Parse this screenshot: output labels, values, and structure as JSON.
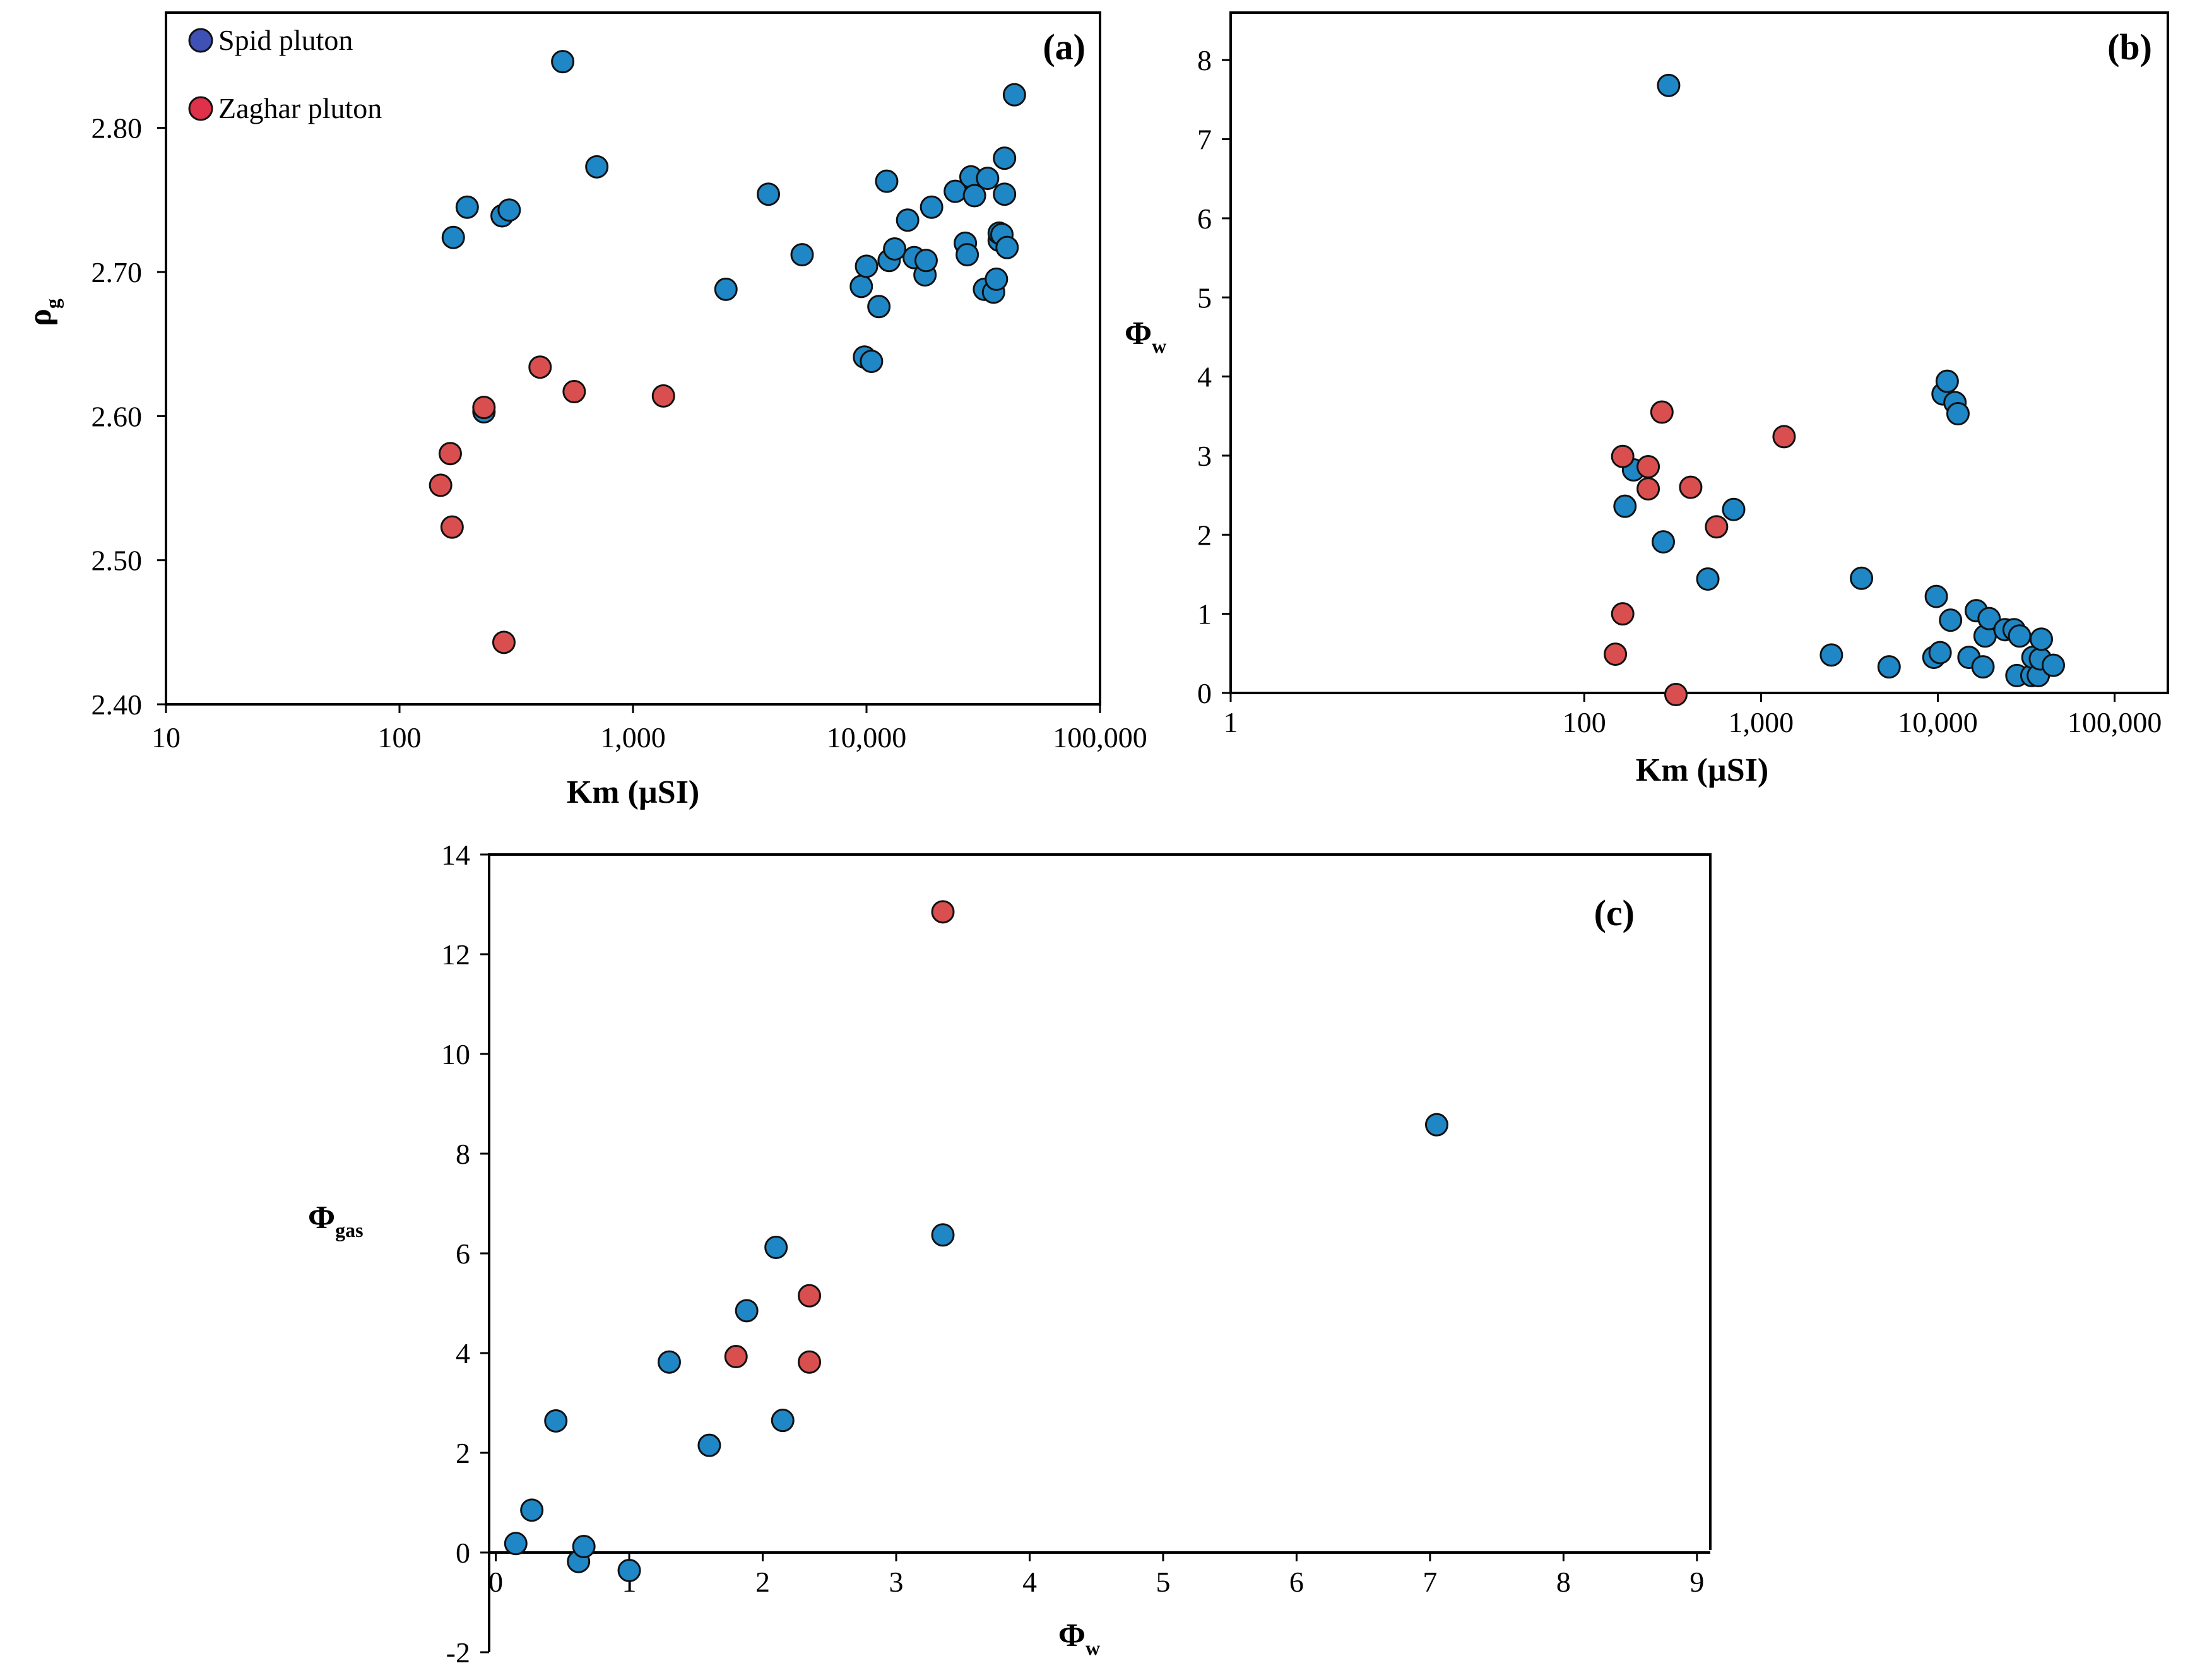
{
  "colors": {
    "spid": "#1f87c6",
    "zaghar": "#d94f4f",
    "legend_spid": "#3f51b5",
    "legend_zaghar": "#e0314b",
    "marker_stroke": "#111111"
  },
  "legend": {
    "spid": "Spid pluton",
    "zaghar": "Zaghar pluton"
  },
  "chart_data": [
    {
      "id": "a",
      "panel_label": "(a)",
      "type": "scatter",
      "xscale": "log",
      "xlabel": "Km (µSI)",
      "ylabel": {
        "main": "ρ",
        "sub": "g"
      },
      "xlim": [
        10,
        100000
      ],
      "ylim": [
        2.4,
        2.88
      ],
      "xticks": [
        10,
        100,
        1000,
        10000,
        100000
      ],
      "xtick_labels": [
        "10",
        "100",
        "1,000",
        "10,000",
        "100,000"
      ],
      "yticks": [
        2.4,
        2.5,
        2.6,
        2.7,
        2.8
      ],
      "ytick_labels": [
        "2.40",
        "2.50",
        "2.60",
        "2.70",
        "2.80"
      ],
      "legend_position": "top-left",
      "series": [
        {
          "name": "Spid pluton",
          "color": "#1f87c6",
          "x": [
            170,
            195,
            275,
            295,
            230,
            500,
            700,
            2500,
            3800,
            5300,
            9500,
            10000,
            9800,
            10500,
            11300,
            12200,
            12500,
            13200,
            15000,
            16000,
            17800,
            18000,
            19000,
            24000,
            26500,
            27000,
            28000,
            29000,
            32000,
            33000,
            35000,
            36000,
            37000,
            37000,
            38000,
            39000,
            39000,
            40000,
            43000
          ],
          "y": [
            2.724,
            2.745,
            2.739,
            2.743,
            2.603,
            2.846,
            2.773,
            2.688,
            2.754,
            2.712,
            2.69,
            2.704,
            2.641,
            2.638,
            2.676,
            2.763,
            2.708,
            2.716,
            2.736,
            2.71,
            2.698,
            2.708,
            2.745,
            2.756,
            2.72,
            2.712,
            2.766,
            2.753,
            2.688,
            2.765,
            2.686,
            2.695,
            2.722,
            2.727,
            2.726,
            2.754,
            2.779,
            2.717,
            2.823
          ]
        },
        {
          "name": "Zaghar pluton",
          "color": "#d94f4f",
          "x": [
            150,
            165,
            168,
            230,
            280,
            400,
            560,
            1350
          ],
          "y": [
            2.552,
            2.574,
            2.523,
            2.606,
            2.443,
            2.634,
            2.617,
            2.614
          ]
        }
      ]
    },
    {
      "id": "b",
      "panel_label": "(b)",
      "type": "scatter",
      "xscale": "log",
      "xlabel": "Km (µSI)",
      "ylabel": {
        "main": "Φ",
        "sub": "w"
      },
      "xlim": [
        1,
        200000
      ],
      "ylim": [
        0,
        8.6
      ],
      "xticks": [
        1,
        100,
        1000,
        10000,
        100000
      ],
      "xtick_labels": [
        "1",
        "100",
        "1,000",
        "10,000",
        "100,000"
      ],
      "yticks": [
        0,
        1,
        2,
        3,
        4,
        5,
        6,
        7,
        8
      ],
      "ytick_labels": [
        "0",
        "1",
        "2",
        "3",
        "4",
        "5",
        "6",
        "7",
        "8"
      ],
      "series": [
        {
          "name": "Spid pluton",
          "color": "#1f87c6",
          "x": [
            300,
            190,
            170,
            280,
            500,
            700,
            2500,
            3700,
            5300,
            9500,
            9800,
            10300,
            10700,
            11300,
            11800,
            12500,
            13000,
            15000,
            16500,
            18000,
            18500,
            19500,
            24000,
            27000,
            28000,
            29000,
            34000,
            34500,
            37000,
            38000,
            38500,
            45000
          ],
          "y": [
            7.68,
            2.82,
            2.36,
            1.91,
            1.44,
            2.32,
            0.48,
            1.45,
            0.33,
            0.45,
            1.22,
            0.51,
            3.78,
            3.94,
            0.92,
            3.67,
            3.53,
            0.45,
            1.04,
            0.33,
            0.72,
            0.94,
            0.8,
            0.8,
            0.22,
            0.72,
            0.22,
            0.45,
            0.22,
            0.43,
            0.68,
            0.35
          ]
        },
        {
          "name": "Zaghar pluton",
          "color": "#d94f4f",
          "x": [
            150,
            165,
            165,
            230,
            230,
            275,
            330,
            400,
            560,
            1350
          ],
          "y": [
            0.49,
            1.0,
            2.99,
            2.86,
            2.58,
            3.55,
            -0.02,
            2.6,
            2.1,
            3.24
          ]
        }
      ]
    },
    {
      "id": "c",
      "panel_label": "(c)",
      "type": "scatter",
      "xscale": "linear",
      "xlabel": {
        "main": "Φ",
        "sub": "w"
      },
      "ylabel": {
        "main": "Φ",
        "sub": "gas"
      },
      "xlim": [
        -0.05,
        9.1
      ],
      "ylim": [
        -2,
        14
      ],
      "xticks": [
        0,
        1,
        2,
        3,
        4,
        5,
        6,
        7,
        8,
        9
      ],
      "xtick_labels": [
        "0",
        "1",
        "2",
        "3",
        "4",
        "5",
        "6",
        "7",
        "8",
        "9"
      ],
      "yticks": [
        -2,
        0,
        2,
        4,
        6,
        8,
        10,
        12,
        14
      ],
      "ytick_labels": [
        "-2",
        "0",
        "2",
        "4",
        "6",
        "8",
        "10",
        "12",
        "14"
      ],
      "series": [
        {
          "name": "Spid pluton",
          "color": "#1f87c6",
          "x": [
            0.15,
            0.27,
            0.45,
            0.62,
            0.66,
            1.0,
            1.3,
            1.6,
            1.88,
            2.1,
            2.15,
            3.35,
            7.05
          ],
          "y": [
            0.18,
            0.85,
            2.64,
            -0.18,
            0.12,
            -0.36,
            3.82,
            2.15,
            4.85,
            6.12,
            2.65,
            6.37,
            8.58
          ]
        },
        {
          "name": "Zaghar pluton",
          "color": "#d94f4f",
          "x": [
            1.8,
            2.35,
            2.35,
            3.35
          ],
          "y": [
            3.93,
            5.15,
            3.82,
            12.85
          ]
        }
      ]
    }
  ]
}
